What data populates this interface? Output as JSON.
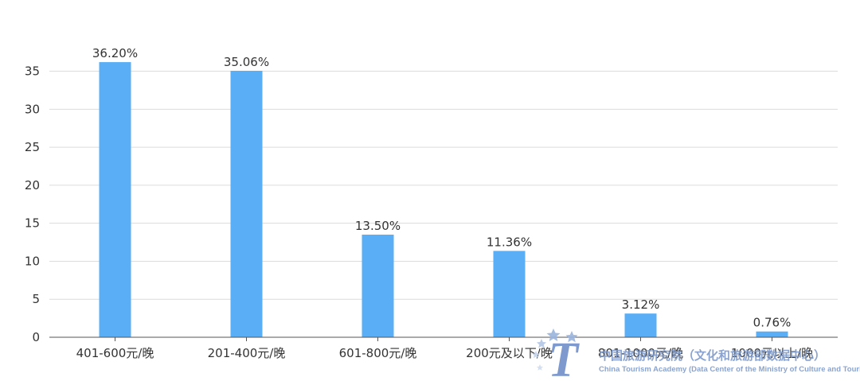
{
  "chart_data": {
    "type": "bar",
    "categories": [
      "401-600元/晚",
      "201-400元/晚",
      "601-800元/晚",
      "200元及以下/晚",
      "801-1000元/晚",
      "1000元以上/晚"
    ],
    "values": [
      36.2,
      35.06,
      13.5,
      11.36,
      3.12,
      0.76
    ],
    "data_labels": [
      "36.20%",
      "35.06%",
      "13.50%",
      "11.36%",
      "3.12%",
      "0.76%"
    ],
    "title": "",
    "xlabel": "",
    "ylabel": "",
    "ylim": [
      0,
      36
    ],
    "yticks": [
      0,
      5,
      10,
      15,
      20,
      25,
      30,
      35
    ],
    "grid": true,
    "bar_color": "#5aaef5"
  },
  "watermark": {
    "name_cn": "中国旅游研究院（文化和旅游部数据中心）",
    "name_en": "China Tourism Academy (Data Center of the Ministry of Culture and Tourism)",
    "logo_letter": "T",
    "logo_color": "#6f8fc9"
  }
}
